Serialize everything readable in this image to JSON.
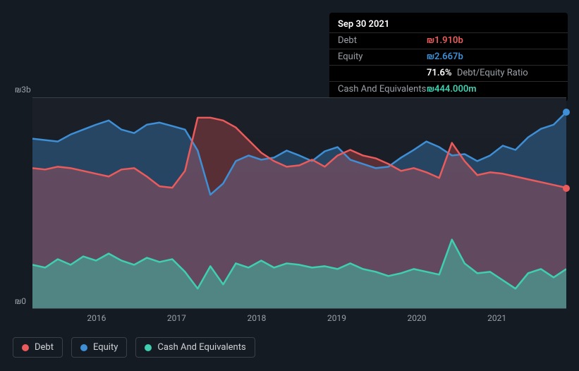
{
  "tooltip": {
    "date": "Sep 30 2021",
    "rows": [
      {
        "label": "Debt",
        "value": "₪1.910b",
        "color": "#eb5b5b"
      },
      {
        "label": "Equity",
        "value": "₪2.667b",
        "color": "#3e8fd5"
      },
      {
        "label": "",
        "value": "71.6%",
        "suffix": "Debt/Equity Ratio",
        "color": "#ffffff"
      },
      {
        "label": "Cash And Equivalents",
        "value": "₪444.000m",
        "color": "#3fcfb0"
      }
    ]
  },
  "chart": {
    "type": "area",
    "y_labels": {
      "top": "₪3b",
      "bottom": "₪0"
    },
    "x_ticks": [
      "2016",
      "2017",
      "2018",
      "2019",
      "2020",
      "2021"
    ],
    "x_tick_positions": [
      0.12,
      0.27,
      0.42,
      0.57,
      0.72,
      0.87
    ],
    "y_domain": [
      0,
      3.0
    ],
    "plot_background": "#1b2028",
    "grid_color": "#3a4048",
    "series": [
      {
        "name": "Equity",
        "color": "#3e8fd5",
        "fill_opacity": 0.35,
        "line_width": 2.5,
        "end_dot": true,
        "data": [
          2.42,
          2.4,
          2.38,
          2.48,
          2.55,
          2.62,
          2.68,
          2.55,
          2.5,
          2.62,
          2.65,
          2.6,
          2.55,
          2.25,
          1.62,
          1.78,
          2.1,
          2.18,
          2.12,
          2.15,
          2.25,
          2.18,
          2.1,
          2.24,
          2.3,
          2.12,
          2.06,
          2.0,
          2.02,
          2.15,
          2.26,
          2.38,
          2.3,
          2.18,
          2.2,
          2.1,
          2.18,
          2.32,
          2.26,
          2.44,
          2.56,
          2.62,
          2.8
        ]
      },
      {
        "name": "Debt",
        "color": "#eb5b5b",
        "fill_opacity": 0.3,
        "line_width": 2.5,
        "end_dot": true,
        "data": [
          2.0,
          1.98,
          2.02,
          2.0,
          1.96,
          1.92,
          1.88,
          1.98,
          2.0,
          1.88,
          1.74,
          1.72,
          1.96,
          2.72,
          2.72,
          2.68,
          2.58,
          2.4,
          2.22,
          2.1,
          2.02,
          2.04,
          2.12,
          2.02,
          2.18,
          2.26,
          2.18,
          2.14,
          2.06,
          1.96,
          2.0,
          1.94,
          1.86,
          2.36,
          2.1,
          1.9,
          1.94,
          1.92,
          1.88,
          1.84,
          1.8,
          1.76,
          1.72
        ]
      },
      {
        "name": "Cash And Equivalents",
        "color": "#3fcfb0",
        "fill_opacity": 0.45,
        "line_width": 2.5,
        "end_dot": false,
        "data": [
          0.62,
          0.58,
          0.7,
          0.62,
          0.74,
          0.68,
          0.78,
          0.68,
          0.62,
          0.72,
          0.66,
          0.7,
          0.52,
          0.28,
          0.6,
          0.34,
          0.64,
          0.58,
          0.68,
          0.58,
          0.64,
          0.62,
          0.58,
          0.6,
          0.56,
          0.64,
          0.56,
          0.52,
          0.46,
          0.5,
          0.56,
          0.52,
          0.48,
          0.98,
          0.64,
          0.5,
          0.52,
          0.4,
          0.28,
          0.5,
          0.56,
          0.44,
          0.56
        ]
      }
    ]
  },
  "legend": [
    {
      "label": "Debt",
      "color": "#eb5b5b"
    },
    {
      "label": "Equity",
      "color": "#3e8fd5"
    },
    {
      "label": "Cash And Equivalents",
      "color": "#3fcfb0"
    }
  ]
}
